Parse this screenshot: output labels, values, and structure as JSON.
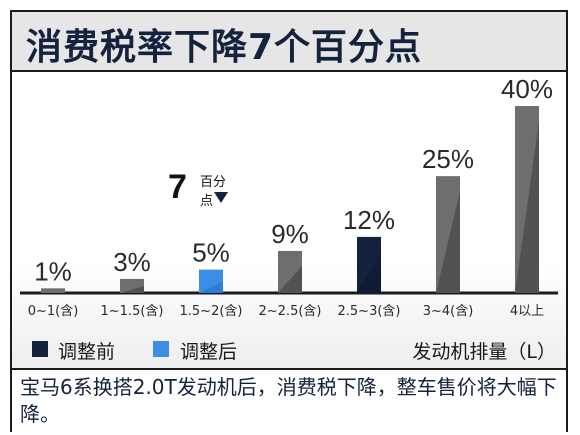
{
  "title": "消费税率下降7个百分点",
  "annotation": {
    "number": "7",
    "text": "百分点"
  },
  "legend": {
    "before": "调整前",
    "after": "调整后",
    "unit": "发动机排量（L）"
  },
  "caption": "宝马6系换搭2.0T发动机后，消费税下降，整车售价将大幅下降。",
  "colors": {
    "before": "#14223d",
    "after": "#3a8ee6",
    "other": "#6e6e6e",
    "frame": "#1a1a1a"
  },
  "chart_data": {
    "type": "bar",
    "categories": [
      "0~1(含)",
      "1~1.5(含)",
      "1.5~2(含)",
      "2~2.5(含)",
      "2.5~3(含)",
      "3~4(含)",
      "4以上"
    ],
    "values": [
      1,
      3,
      5,
      9,
      12,
      25,
      40
    ],
    "value_labels": [
      "1%",
      "3%",
      "5%",
      "9%",
      "12%",
      "25%",
      "40%"
    ],
    "highlight": {
      "before_index": 4,
      "after_index": 2
    },
    "xlabel": "发动机排量（L）",
    "ylabel": "",
    "ylim": [
      0,
      40
    ]
  }
}
